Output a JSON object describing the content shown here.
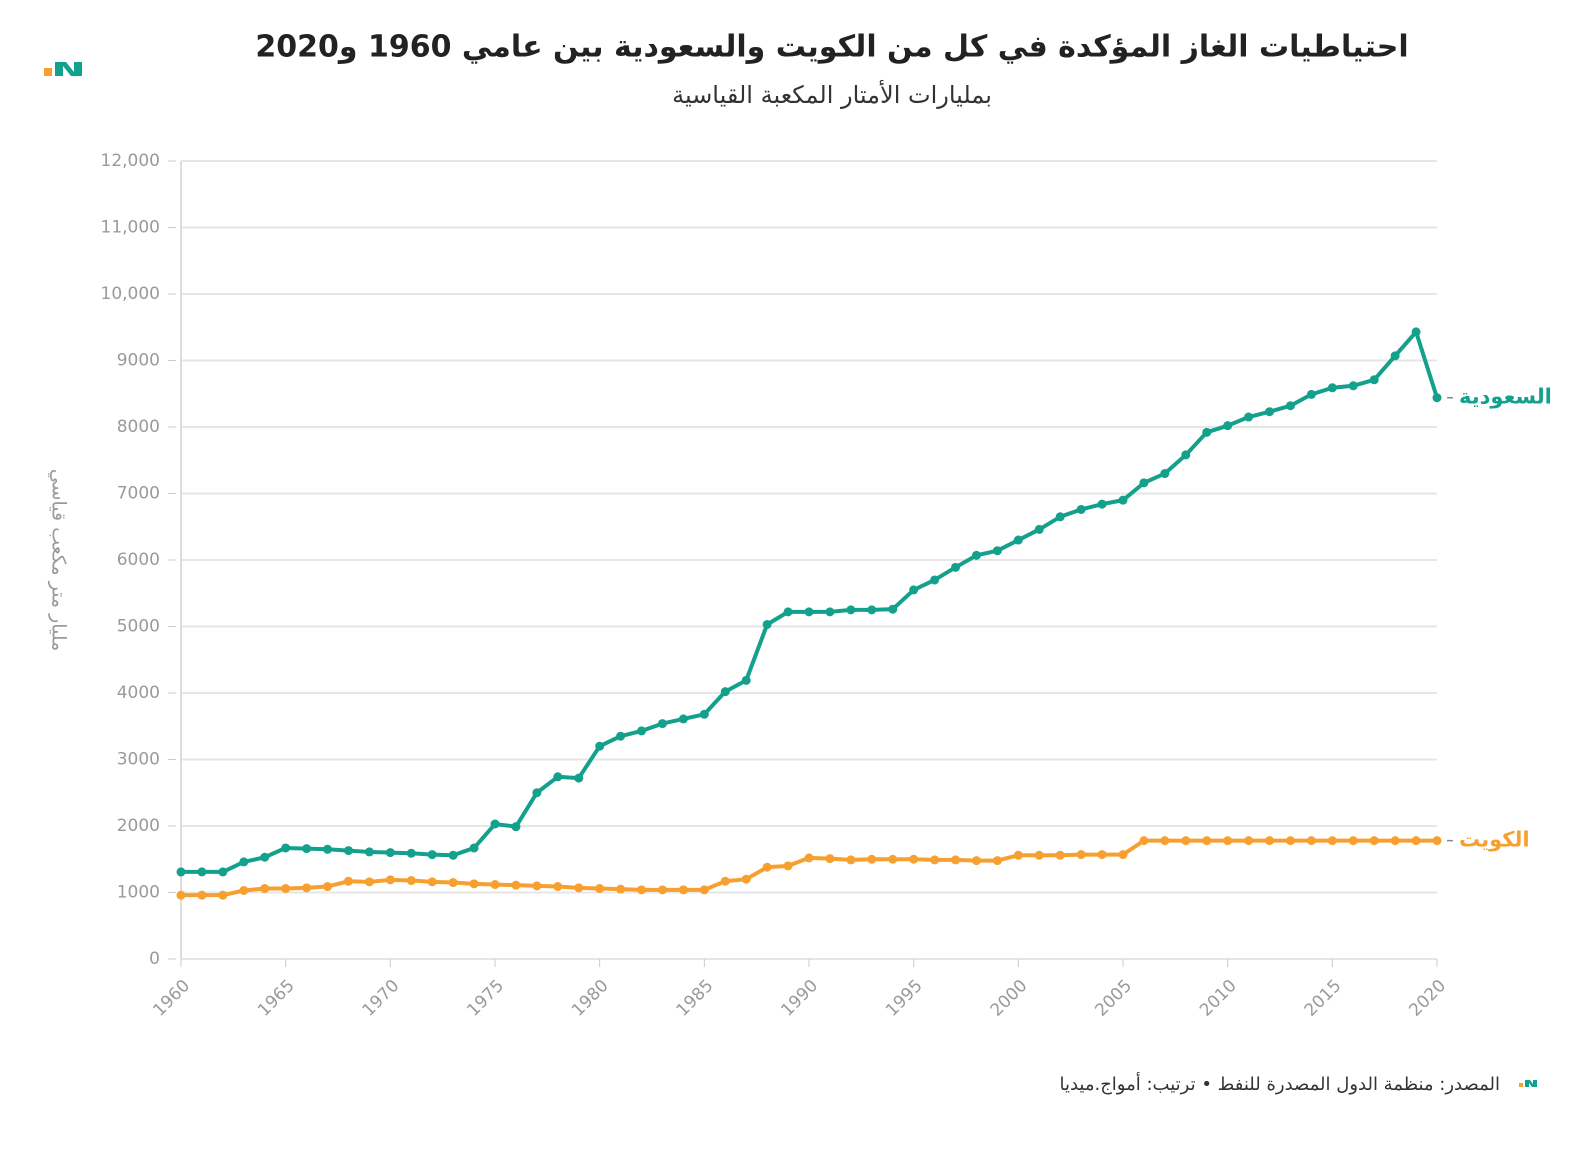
{
  "chart_data": {
    "type": "line",
    "title": "احتياطيات الغاز المؤكدة في كل من الكويت والسعودية بين عامي 1960 و2020",
    "subtitle": "بمليارات الأمتار المكعبة القياسية",
    "y_label": "مليار متر مكعب قياسي",
    "source": "المصدر: منظمة الدول المصدرة للنفط • ترتيب: أمواج.ميديا",
    "x": [
      1960,
      1961,
      1962,
      1963,
      1964,
      1965,
      1966,
      1967,
      1968,
      1969,
      1970,
      1971,
      1972,
      1973,
      1974,
      1975,
      1976,
      1977,
      1978,
      1979,
      1980,
      1981,
      1982,
      1983,
      1984,
      1985,
      1986,
      1987,
      1988,
      1989,
      1990,
      1991,
      1992,
      1993,
      1994,
      1995,
      1996,
      1997,
      1998,
      1999,
      2000,
      2001,
      2002,
      2003,
      2004,
      2005,
      2006,
      2007,
      2008,
      2009,
      2010,
      2011,
      2012,
      2013,
      2014,
      2015,
      2016,
      2017,
      2018,
      2019,
      2020
    ],
    "series": [
      {
        "name": "السعودية",
        "color": "#13a08c",
        "values": [
          1310,
          1310,
          1310,
          1460,
          1530,
          1670,
          1660,
          1650,
          1630,
          1610,
          1600,
          1590,
          1570,
          1560,
          1670,
          2030,
          1990,
          2500,
          2740,
          2720,
          3200,
          3350,
          3430,
          3540,
          3610,
          3680,
          4020,
          4190,
          5030,
          5220,
          5220,
          5220,
          5250,
          5250,
          5260,
          5550,
          5700,
          5890,
          6070,
          6140,
          6300,
          6460,
          6650,
          6760,
          6840,
          6900,
          7160,
          7300,
          7580,
          7920,
          8020,
          8150,
          8230,
          8320,
          8490,
          8590,
          8620,
          8710,
          9070,
          9430,
          8440
        ]
      },
      {
        "name": "الكويت",
        "color": "#f7a030",
        "values": [
          960,
          960,
          960,
          1030,
          1060,
          1060,
          1070,
          1090,
          1170,
          1160,
          1190,
          1180,
          1160,
          1150,
          1130,
          1120,
          1110,
          1100,
          1090,
          1070,
          1060,
          1050,
          1040,
          1040,
          1040,
          1040,
          1170,
          1200,
          1380,
          1400,
          1520,
          1510,
          1490,
          1500,
          1500,
          1500,
          1490,
          1490,
          1480,
          1480,
          1560,
          1560,
          1560,
          1570,
          1570,
          1570,
          1780,
          1780,
          1780,
          1780,
          1780,
          1780,
          1780,
          1780,
          1780,
          1780,
          1780,
          1780,
          1780,
          1780,
          1780
        ]
      }
    ],
    "xlim": [
      1960,
      2020
    ],
    "xticks": [
      1960,
      1965,
      1970,
      1975,
      1980,
      1985,
      1990,
      1995,
      2000,
      2005,
      2010,
      2015,
      2020
    ],
    "ylim": [
      0,
      12000
    ],
    "yticks": [
      0,
      1000,
      2000,
      3000,
      4000,
      5000,
      6000,
      7000,
      8000,
      9000,
      {
        "value": 10000,
        "label": "10,000"
      },
      {
        "value": 11000,
        "label": "11,000"
      },
      {
        "value": 12000,
        "label": "12,000"
      }
    ],
    "grid": true
  }
}
